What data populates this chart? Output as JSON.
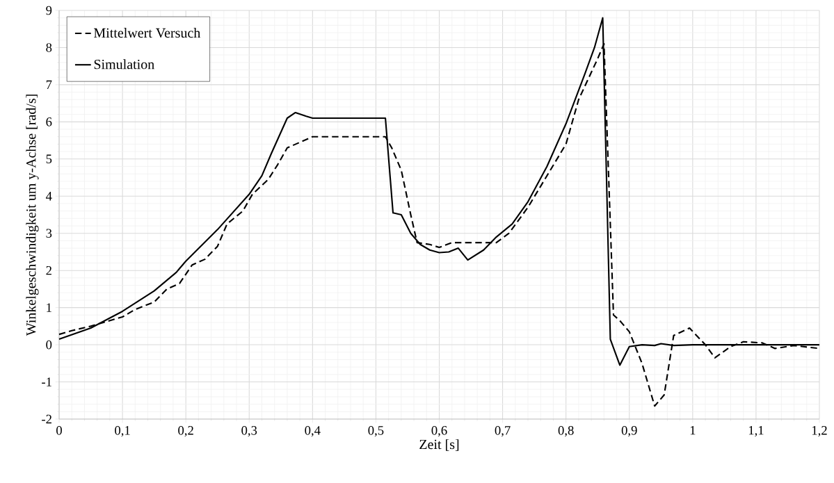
{
  "chart_data": {
    "type": "line",
    "xlabel": "Zeit [s]",
    "ylabel": "Winkelgeschwindigkeit um y-Achse  [rad/s]",
    "xlim": [
      0,
      1.2
    ],
    "ylim": [
      -2,
      9
    ],
    "xticks": [
      0,
      {
        "value": 0.1,
        "label": "0,1"
      },
      {
        "value": 0.2,
        "label": "0,2"
      },
      {
        "value": 0.3,
        "label": "0,3"
      },
      {
        "value": 0.4,
        "label": "0,4"
      },
      {
        "value": 0.5,
        "label": "0,5"
      },
      {
        "value": 0.6,
        "label": "0,6"
      },
      {
        "value": 0.7,
        "label": "0,7"
      },
      {
        "value": 0.8,
        "label": "0,8"
      },
      {
        "value": 0.9,
        "label": "0,9"
      },
      1,
      {
        "value": 1.1,
        "label": "1,1"
      },
      {
        "value": 1.2,
        "label": "1,2"
      }
    ],
    "yticks": [
      -2,
      -1,
      0,
      1,
      2,
      3,
      4,
      5,
      6,
      7,
      8,
      9
    ],
    "grid": true,
    "legend": "top left",
    "series": [
      {
        "name": "Mittelwert Versuch",
        "color": "#000000",
        "line_style": "dashed",
        "x": [
          0,
          0.02,
          0.05,
          0.07,
          0.1,
          0.12,
          0.15,
          0.17,
          0.19,
          0.21,
          0.23,
          0.25,
          0.265,
          0.29,
          0.305,
          0.33,
          0.345,
          0.36,
          0.38,
          0.4,
          0.5,
          0.515,
          0.525,
          0.54,
          0.555,
          0.565,
          0.585,
          0.6,
          0.62,
          0.69,
          0.71,
          0.74,
          0.8,
          0.82,
          0.85,
          0.86,
          0.875,
          0.885,
          0.9,
          0.92,
          0.94,
          0.955,
          0.97,
          0.995,
          1.02,
          1.035,
          1.06,
          1.08,
          1.11,
          1.13,
          1.16,
          1.2
        ],
        "values": [
          0.28,
          0.38,
          0.5,
          0.6,
          0.75,
          0.95,
          1.15,
          1.5,
          1.65,
          2.15,
          2.3,
          2.65,
          3.25,
          3.6,
          4.05,
          4.45,
          4.85,
          5.3,
          5.45,
          5.6,
          5.6,
          5.6,
          5.3,
          4.7,
          3.5,
          2.75,
          2.7,
          2.62,
          2.75,
          2.75,
          3.0,
          3.7,
          5.4,
          6.6,
          7.7,
          8.1,
          0.8,
          0.65,
          0.35,
          -0.5,
          -1.65,
          -1.35,
          0.25,
          0.45,
          0.0,
          -0.35,
          -0.05,
          0.08,
          0.05,
          -0.1,
          -0.02,
          -0.1
        ]
      },
      {
        "name": "Simulation",
        "color": "#000000",
        "line_style": "solid",
        "x": [
          0,
          0.05,
          0.1,
          0.15,
          0.185,
          0.2,
          0.25,
          0.3,
          0.32,
          0.335,
          0.36,
          0.373,
          0.39,
          0.4,
          0.515,
          0.527,
          0.54,
          0.555,
          0.57,
          0.585,
          0.6,
          0.615,
          0.63,
          0.645,
          0.67,
          0.69,
          0.715,
          0.74,
          0.77,
          0.8,
          0.83,
          0.845,
          0.858,
          0.87,
          0.885,
          0.9,
          0.92,
          0.94,
          0.95,
          0.97,
          1.0,
          1.2
        ],
        "values": [
          0.15,
          0.45,
          0.9,
          1.45,
          1.95,
          2.25,
          3.1,
          4.05,
          4.55,
          5.15,
          6.1,
          6.25,
          6.15,
          6.1,
          6.1,
          3.55,
          3.5,
          3.0,
          2.7,
          2.55,
          2.48,
          2.5,
          2.6,
          2.28,
          2.55,
          2.9,
          3.25,
          3.85,
          4.8,
          5.95,
          7.3,
          8.0,
          8.8,
          0.15,
          -0.55,
          -0.05,
          0.0,
          -0.02,
          0.03,
          -0.02,
          0.0,
          0.0
        ]
      }
    ]
  }
}
